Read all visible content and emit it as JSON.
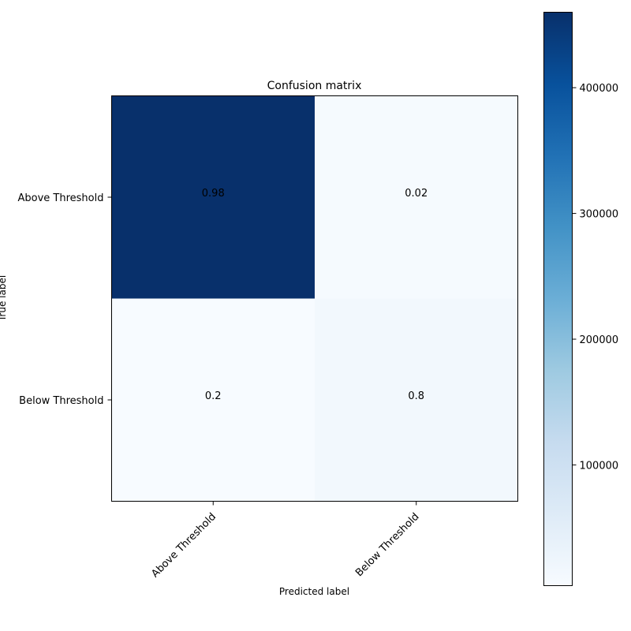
{
  "chart_data": {
    "type": "heatmap",
    "title": "Confusion matrix",
    "xlabel": "Predicted label",
    "ylabel": "True label",
    "x_categories": [
      "Above Threshold",
      "Below Threshold"
    ],
    "y_categories": [
      "Above Threshold",
      "Below Threshold"
    ],
    "cell_labels": [
      [
        "0.98",
        "0.02"
      ],
      [
        "0.2",
        "0.8"
      ]
    ],
    "counts": [
      [
        460000,
        9000
      ],
      [
        4000,
        16000
      ]
    ],
    "colorbar": {
      "min": 4000,
      "max": 460000,
      "ticks": [
        100000,
        200000,
        300000,
        400000
      ],
      "tick_labels": [
        "100000",
        "200000",
        "300000",
        "400000"
      ]
    },
    "colormap": [
      "#f7fbff",
      "#deebf7",
      "#c6dbef",
      "#9ecae1",
      "#6baed6",
      "#4292c6",
      "#2171b5",
      "#08519c",
      "#08306b"
    ]
  }
}
